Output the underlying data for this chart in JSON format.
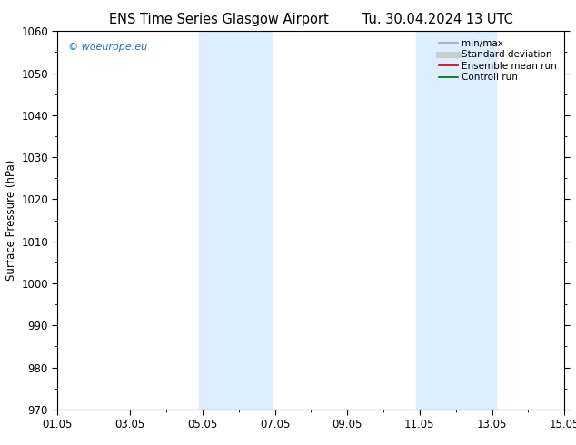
{
  "title_left": "ENS Time Series Glasgow Airport",
  "title_right": "Tu. 30.04.2024 13 UTC",
  "ylabel": "Surface Pressure (hPa)",
  "ylim": [
    970,
    1060
  ],
  "yticks": [
    970,
    980,
    990,
    1000,
    1010,
    1020,
    1030,
    1040,
    1050,
    1060
  ],
  "xlim_start": 0,
  "xlim_end": 14,
  "xtick_positions": [
    0,
    2,
    4,
    6,
    8,
    10,
    12,
    14
  ],
  "xtick_labels": [
    "01.05",
    "03.05",
    "05.05",
    "07.05",
    "09.05",
    "11.05",
    "13.05",
    "15.05"
  ],
  "shaded_bands": [
    {
      "x_start": 3.9,
      "x_end": 5.9,
      "color": "#ddeeff",
      "alpha": 1.0
    },
    {
      "x_start": 9.9,
      "x_end": 12.1,
      "color": "#ddeeff",
      "alpha": 1.0
    }
  ],
  "legend_items": [
    {
      "label": "min/max",
      "color": "#aaaaaa",
      "lw": 1.2,
      "style": "solid"
    },
    {
      "label": "Standard deviation",
      "color": "#cccccc",
      "lw": 5,
      "style": "solid"
    },
    {
      "label": "Ensemble mean run",
      "color": "#cc0000",
      "lw": 1.2,
      "style": "solid"
    },
    {
      "label": "Controll run",
      "color": "#006600",
      "lw": 1.2,
      "style": "solid"
    }
  ],
  "watermark": "© woeurope.eu",
  "watermark_color": "#1a6ec4",
  "bg_color": "#ffffff",
  "plot_bg_color": "#ffffff",
  "tick_label_fontsize": 8.5,
  "title_fontsize": 10.5,
  "ylabel_fontsize": 8.5,
  "legend_fontsize": 7.5
}
